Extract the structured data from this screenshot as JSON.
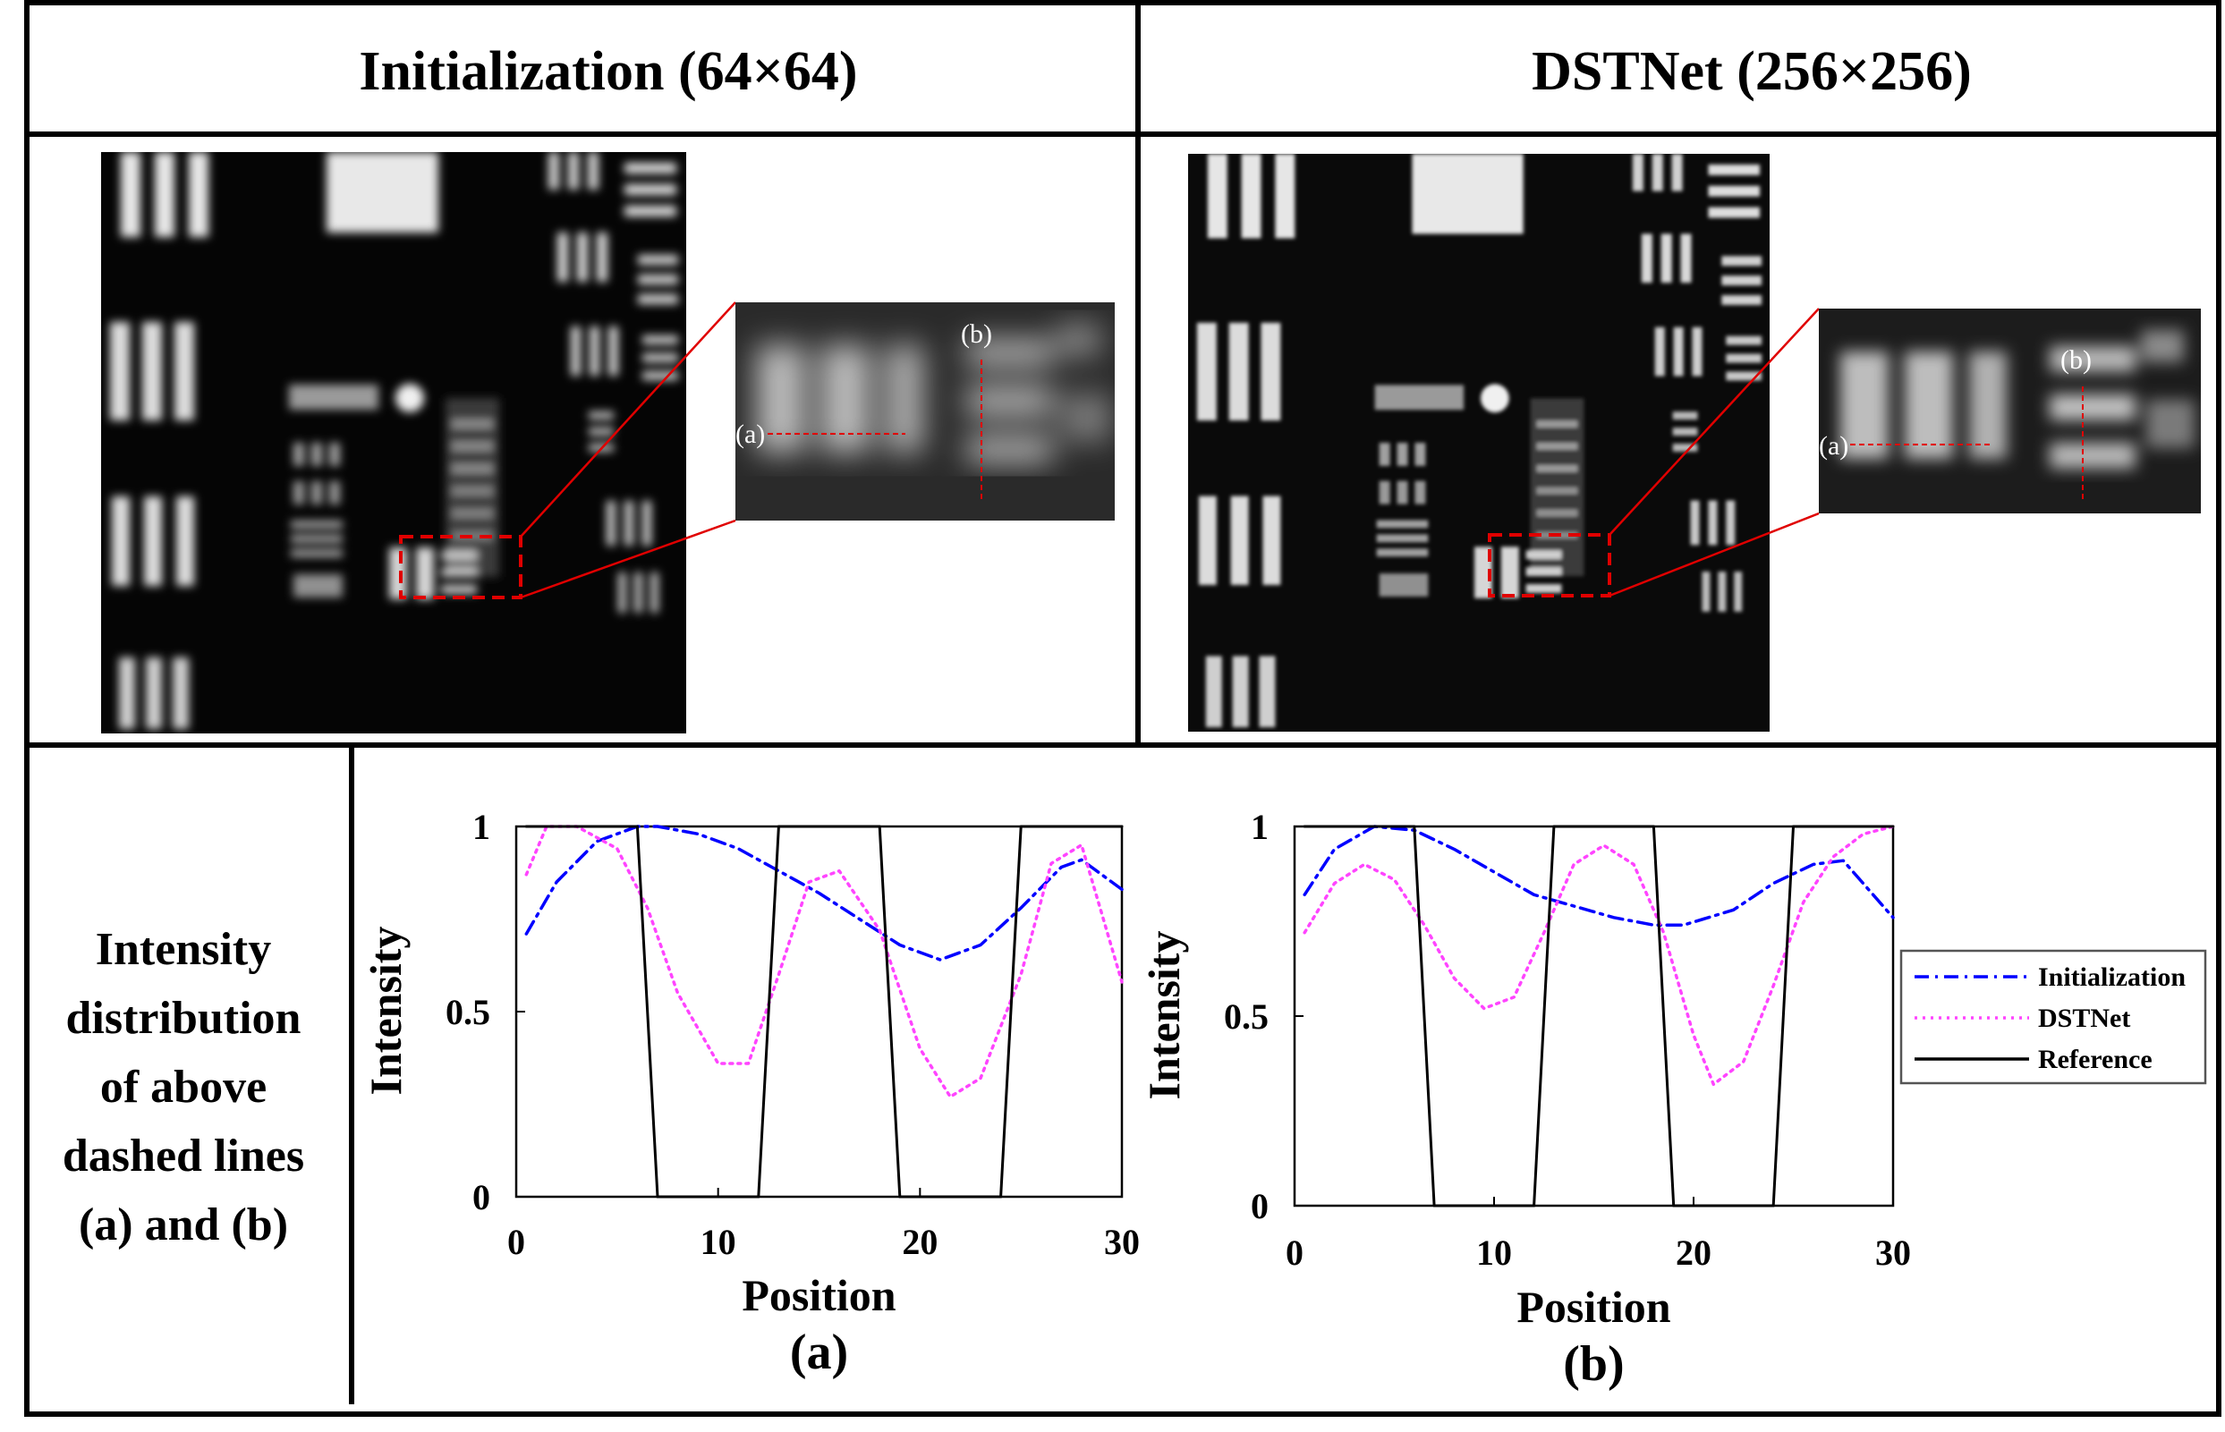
{
  "headers": {
    "left": "Initialization (64×64)",
    "right": "DSTNet (256×256)"
  },
  "zoom_labels": {
    "a": "(a)",
    "b": "(b)"
  },
  "row_label": [
    "Intensity",
    "distribution",
    "of above",
    "dashed lines",
    "(a) and (b)"
  ],
  "legend": {
    "items": [
      {
        "label": "Initialization",
        "color": "#0000ff",
        "style": "dash-dot"
      },
      {
        "label": "DSTNet",
        "color": "#ff44ff",
        "style": "dotted"
      },
      {
        "label": "Reference",
        "color": "#000000",
        "style": "solid"
      }
    ]
  },
  "chart_data": [
    {
      "type": "line",
      "caption": "(a)",
      "xlabel": "Position",
      "ylabel": "Intensity",
      "xlim": [
        0,
        30
      ],
      "ylim": [
        0,
        1
      ],
      "xticks": [
        "0",
        "10",
        "20",
        "30"
      ],
      "yticks": [
        "0",
        "0.5",
        "1"
      ],
      "series": [
        {
          "name": "Initialization",
          "color": "#0000ff",
          "style": "dash-dot",
          "x": [
            0.5,
            2,
            4,
            6,
            7,
            9,
            11,
            13,
            15,
            17,
            19,
            21,
            23,
            25,
            27,
            28,
            30
          ],
          "y": [
            0.71,
            0.85,
            0.96,
            1.0,
            1.0,
            0.98,
            0.94,
            0.88,
            0.82,
            0.75,
            0.68,
            0.64,
            0.68,
            0.78,
            0.89,
            0.91,
            0.83
          ]
        },
        {
          "name": "DSTNet",
          "color": "#ff44ff",
          "style": "dotted",
          "x": [
            0.5,
            1.5,
            3,
            5,
            6.5,
            8,
            10,
            11.5,
            13,
            14.5,
            16,
            18,
            20,
            21.5,
            23,
            25,
            26.5,
            28,
            30
          ],
          "y": [
            0.87,
            1.0,
            1.0,
            0.94,
            0.78,
            0.55,
            0.36,
            0.36,
            0.6,
            0.85,
            0.88,
            0.72,
            0.4,
            0.27,
            0.32,
            0.6,
            0.9,
            0.95,
            0.58
          ]
        },
        {
          "name": "Reference",
          "color": "#000000",
          "style": "solid",
          "x": [
            0.5,
            6,
            7,
            12,
            13,
            18,
            19,
            24,
            25,
            30
          ],
          "y": [
            1,
            1,
            0,
            0,
            1,
            1,
            0,
            0,
            1,
            1
          ]
        }
      ]
    },
    {
      "type": "line",
      "caption": "(b)",
      "xlabel": "Position",
      "ylabel": "Intensity",
      "xlim": [
        0,
        30
      ],
      "ylim": [
        0,
        1
      ],
      "xticks": [
        "0",
        "10",
        "20",
        "30"
      ],
      "yticks": [
        "0",
        "0.5",
        "1"
      ],
      "series": [
        {
          "name": "Initialization",
          "color": "#0000ff",
          "style": "dash-dot",
          "x": [
            0.5,
            2,
            4,
            6,
            8,
            10,
            12,
            14,
            16,
            18,
            19.5,
            22,
            24,
            26,
            27.5,
            30
          ],
          "y": [
            0.82,
            0.94,
            1.0,
            0.99,
            0.94,
            0.88,
            0.82,
            0.79,
            0.76,
            0.74,
            0.74,
            0.78,
            0.85,
            0.9,
            0.91,
            0.76
          ]
        },
        {
          "name": "DSTNet",
          "color": "#ff44ff",
          "style": "dotted",
          "x": [
            0.5,
            2,
            3.5,
            5,
            6.5,
            8,
            9.5,
            11,
            12.5,
            14,
            15.5,
            17,
            18.5,
            20,
            21,
            22.5,
            24,
            25.5,
            27,
            28.5,
            30
          ],
          "y": [
            0.72,
            0.85,
            0.9,
            0.86,
            0.74,
            0.6,
            0.52,
            0.55,
            0.72,
            0.9,
            0.95,
            0.9,
            0.72,
            0.45,
            0.32,
            0.38,
            0.58,
            0.8,
            0.92,
            0.98,
            1.0
          ]
        },
        {
          "name": "Reference",
          "color": "#000000",
          "style": "solid",
          "x": [
            0.5,
            6,
            7,
            12,
            13,
            18,
            19,
            24,
            25,
            30
          ],
          "y": [
            1,
            1,
            0,
            0,
            1,
            1,
            0,
            0,
            1,
            1
          ]
        }
      ]
    }
  ]
}
